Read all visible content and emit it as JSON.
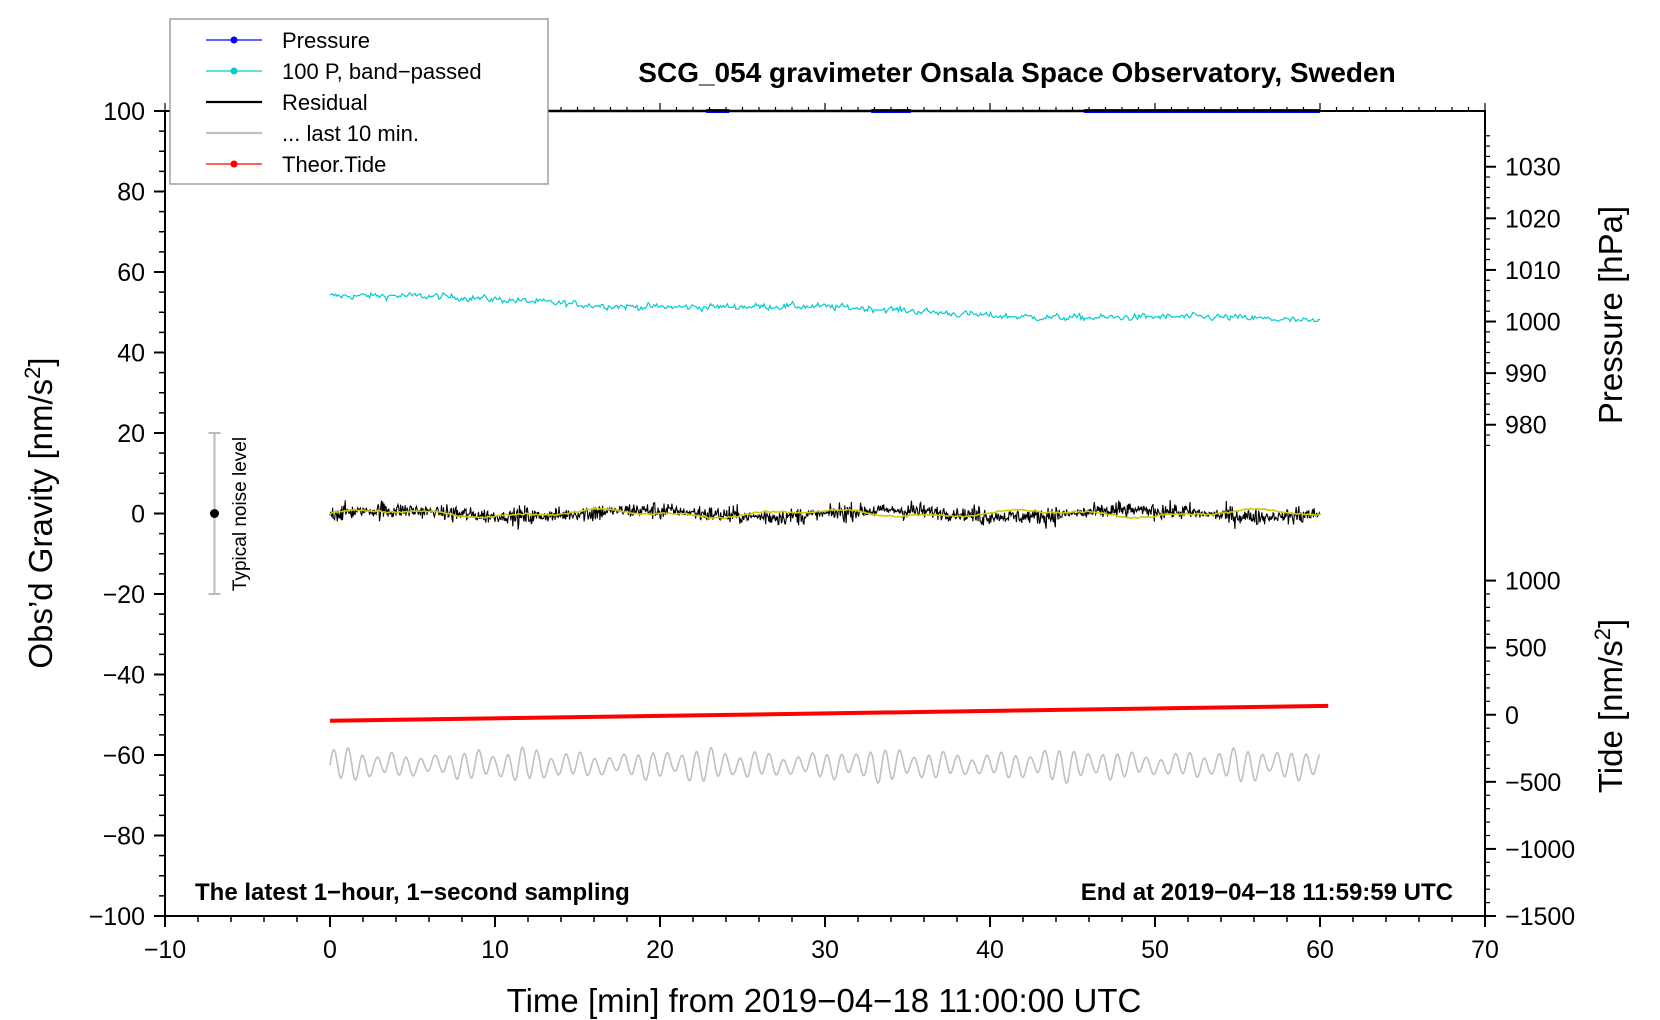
{
  "chart_data": {
    "type": "line",
    "title": "SCG_054 gravimeter Onsala Space Observatory, Sweden",
    "xlabel": "Time [min] from 2019−04−18 11:00:00 UTC",
    "ylabel_main": "Obs’d Gravity [nm/s",
    "ylabel_main_sup": "2",
    "ylabel_main_end": "]",
    "ylabel_pressure": "Pressure [hPa]",
    "ylabel_tide": "Tide [nm/s",
    "ylabel_tide_sup": "2",
    "ylabel_tide_end": "]",
    "xlim": [
      -10,
      70
    ],
    "ylim": [
      -100,
      100
    ],
    "x_ticks": [
      -10,
      0,
      10,
      20,
      30,
      40,
      50,
      60,
      70
    ],
    "x_tick_labels": [
      "−10",
      "0",
      "10",
      "20",
      "30",
      "40",
      "50",
      "60",
      "70"
    ],
    "y_ticks": [
      -100,
      -80,
      -60,
      -40,
      -20,
      0,
      20,
      40,
      60,
      80,
      100
    ],
    "y_tick_labels": [
      "−100",
      "−80",
      "−60",
      "−40",
      "−20",
      "0",
      "20",
      "40",
      "60",
      "80",
      "100"
    ],
    "pressure_ticks": [
      980,
      990,
      1000,
      1010,
      1020,
      1030
    ],
    "pressure_tick_labels": [
      "980",
      "990",
      "1000",
      "1010",
      "1020",
      "1030"
    ],
    "pressure_axis": {
      "value_at_gravity_0": 962.8,
      "hPa_per_gravity_unit": 0.78
    },
    "tide_ticks": [
      -1500,
      -1000,
      -500,
      0,
      500,
      1000
    ],
    "tide_tick_labels": [
      "−1500",
      "−1000",
      "−500",
      "0",
      "500",
      "1000"
    ],
    "tide_axis": {
      "value_at_gravity_minus100": -1500,
      "value_at_gravity_minus50": 0
    },
    "legend": [
      {
        "label": "Pressure",
        "color": "#0000ff",
        "marker": true
      },
      {
        "label": "100 P, band−passed",
        "color": "#00cccc",
        "marker": true
      },
      {
        "label": "Residual",
        "color": "#000000",
        "marker": false
      },
      {
        "label": "... last 10 min.",
        "color": "#c0c0c0",
        "marker": false
      },
      {
        "label": "Theor.Tide",
        "color": "#ff0000",
        "marker": true
      }
    ],
    "legend_position": "top-left",
    "series": [
      {
        "name": "100 P, band−passed",
        "color": "#00cccc",
        "x_range": [
          0,
          60
        ],
        "y_start": 54,
        "y_end": 47.5,
        "noise_amplitude": 1.0
      },
      {
        "name": "Residual",
        "color": "#000000",
        "x_range": [
          0,
          60
        ],
        "y_mean": 0,
        "noise_amplitude": 5
      },
      {
        "name": "Residual smoothed",
        "color": "#cccc00",
        "x_range": [
          0,
          60
        ],
        "y_mean": 0,
        "noise_amplitude": 1
      },
      {
        "name": "Theor.Tide",
        "color": "#ff0000",
        "x_range": [
          0,
          60.5
        ],
        "y_start": -51.5,
        "y_end": -47.8
      },
      {
        "name": "... last 10 min.",
        "color": "#c0c0c0",
        "x_range": [
          0,
          60
        ],
        "y_mean": -62.5,
        "noise_amplitude": 4
      },
      {
        "name": "Pressure",
        "color": "#0000ff",
        "x_range": [
          0,
          60
        ],
        "y_value": 100,
        "note": "off-scale, clipped at top of plot"
      }
    ],
    "noise_bar": {
      "x": -7,
      "y_center": 0,
      "y_range": [
        -20,
        20
      ],
      "label": "Typical noise level"
    },
    "annotations": {
      "left": "The latest 1−hour, 1−second sampling",
      "right": "End at 2019−04−18 11:59:59 UTC"
    }
  }
}
